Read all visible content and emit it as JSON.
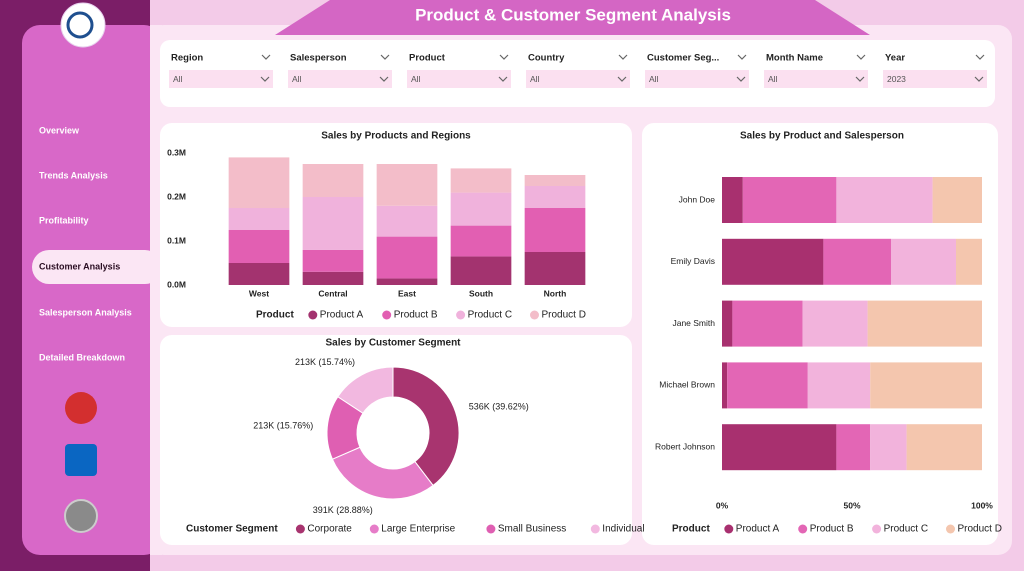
{
  "header": {
    "title": "Product & Customer Segment Analysis"
  },
  "nav": {
    "items": [
      "Overview",
      "Trends Analysis",
      "Profitability",
      "Customer Analysis",
      "Salesperson Analysis",
      "Detailed Breakdown"
    ],
    "active": 3
  },
  "filters": [
    {
      "label": "Region",
      "value": "All"
    },
    {
      "label": "Salesperson",
      "value": "All"
    },
    {
      "label": "Product",
      "value": "All"
    },
    {
      "label": "Country",
      "value": "All"
    },
    {
      "label": "Customer Seg...",
      "value": "All"
    },
    {
      "label": "Month Name",
      "value": "All"
    },
    {
      "label": "Year",
      "value": "2023"
    }
  ],
  "chart_data": [
    {
      "type": "ribbon",
      "title": "Sales by Products and Regions",
      "categories": [
        "West",
        "Central",
        "East",
        "South",
        "North"
      ],
      "ylim": [
        0,
        300000
      ],
      "yticks": [
        {
          "value": 0,
          "label": "0.0M"
        },
        {
          "value": 100000,
          "label": "0.1M"
        },
        {
          "value": 200000,
          "label": "0.2M"
        },
        {
          "value": 300000,
          "label": "0.3M"
        }
      ],
      "legend_title": "Product",
      "series": [
        {
          "name": "Product A",
          "color": "#a3336f",
          "values": [
            50000,
            30000,
            15000,
            65000,
            75000
          ]
        },
        {
          "name": "Product B",
          "color": "#e25fb2",
          "values": [
            75000,
            50000,
            95000,
            70000,
            100000
          ]
        },
        {
          "name": "Product C",
          "color": "#f0b2dc",
          "values": [
            50000,
            120000,
            70000,
            75000,
            50000
          ]
        },
        {
          "name": "Product D",
          "color": "#f3bdc9",
          "values": [
            115000,
            75000,
            95000,
            55000,
            25000
          ]
        }
      ]
    },
    {
      "type": "donut",
      "title": "Sales by Customer Segment",
      "legend_title": "Customer Segment",
      "categories": [
        "Corporate",
        "Large Enterprise",
        "Small Business",
        "Individual"
      ],
      "values": [
        536000,
        391000,
        213000,
        213000
      ],
      "value_labels": [
        "536K (39.62%)",
        "391K (28.88%)",
        "213K (15.76%)",
        "213K (15.74%)"
      ],
      "colors": [
        "#a8346f",
        "#e67cc8",
        "#df5fb2",
        "#f2b8e0"
      ]
    },
    {
      "type": "hbar100",
      "title": "Sales by Product and Salesperson",
      "categories": [
        "John Doe",
        "Emily Davis",
        "Jane Smith",
        "Michael Brown",
        "Robert Johnson"
      ],
      "xlim": [
        0,
        100
      ],
      "xticks": [
        {
          "value": 0,
          "label": "0%"
        },
        {
          "value": 50,
          "label": "50%"
        },
        {
          "value": 100,
          "label": "100%"
        }
      ],
      "legend_title": "Product",
      "series": [
        {
          "name": "Product A",
          "color": "#a8306f",
          "values": [
            8,
            39,
            4,
            2,
            44
          ]
        },
        {
          "name": "Product B",
          "color": "#e366b5",
          "values": [
            36,
            26,
            27,
            31,
            13
          ]
        },
        {
          "name": "Product C",
          "color": "#f2b3dc",
          "values": [
            37,
            25,
            25,
            24,
            14
          ]
        },
        {
          "name": "Product D",
          "color": "#f4c6ae",
          "values": [
            19,
            10,
            44,
            43,
            29
          ]
        }
      ]
    }
  ]
}
